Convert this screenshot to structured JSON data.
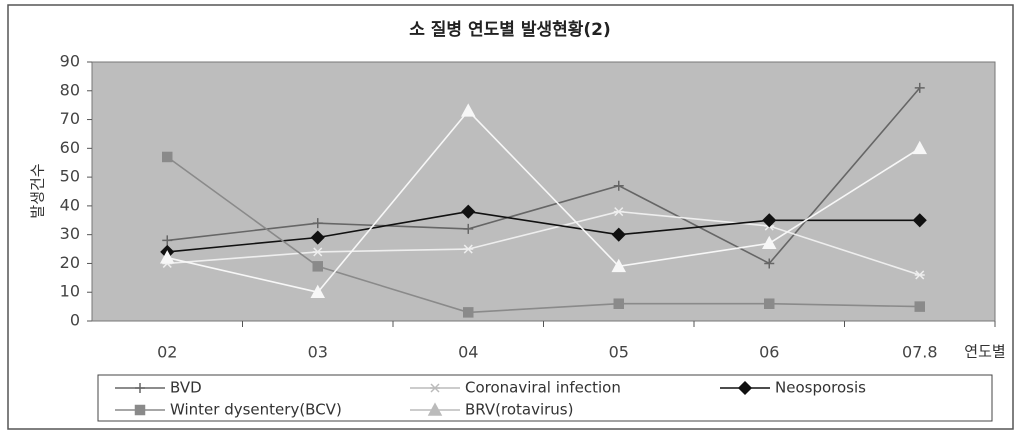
{
  "chart_data": {
    "type": "line",
    "title": "소 질병 연도별 발생현황(2)",
    "y_label": "발생건수",
    "x_label": "연도별",
    "categories": [
      "02",
      "03",
      "04",
      "05",
      "06",
      "07.8"
    ],
    "series": [
      {
        "name": "BVD",
        "color": "#666666",
        "marker": "plus",
        "values": [
          28,
          34,
          32,
          47,
          20,
          81
        ]
      },
      {
        "name": "Coronaviral infection",
        "color": "#eeeeee",
        "marker": "star",
        "values": [
          20,
          24,
          25,
          38,
          33,
          16
        ]
      },
      {
        "name": "Neosporosis",
        "color": "#111111",
        "marker": "diamond",
        "values": [
          24,
          29,
          38,
          30,
          35,
          35
        ]
      },
      {
        "name": "Winter dysentery(BCV)",
        "color": "#8a8a8a",
        "marker": "square",
        "values": [
          57,
          19,
          3,
          6,
          6,
          5
        ]
      },
      {
        "name": "BRV(rotavirus)",
        "color": "#f7f7f7",
        "marker": "triangle",
        "values": [
          22,
          10,
          73,
          19,
          27,
          60
        ]
      }
    ],
    "ylim": [
      0,
      90
    ],
    "yticks": [
      0,
      10,
      20,
      30,
      40,
      50,
      60,
      70,
      80,
      90
    ],
    "grid": false,
    "legend": "bottom"
  }
}
